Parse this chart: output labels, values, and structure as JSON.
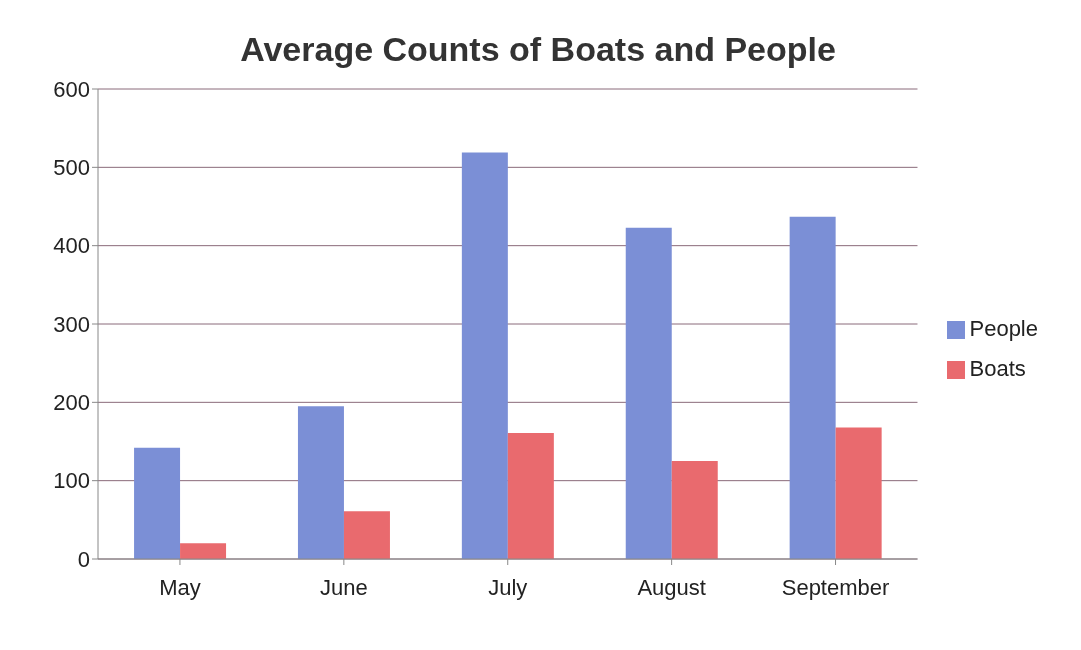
{
  "chart_data": {
    "type": "bar",
    "title": "Average Counts of Boats and People",
    "categories": [
      "May",
      "June",
      "July",
      "August",
      "September"
    ],
    "series": [
      {
        "name": "People",
        "color": "#7b8fd6",
        "values": [
          142,
          195,
          519,
          423,
          437
        ]
      },
      {
        "name": "Boats",
        "color": "#e96a6e",
        "values": [
          20,
          61,
          161,
          125,
          168
        ]
      }
    ],
    "ylim": [
      0,
      600
    ],
    "yticks": [
      0,
      100,
      200,
      300,
      400,
      500,
      600
    ],
    "grid": "y",
    "legend": "right"
  }
}
